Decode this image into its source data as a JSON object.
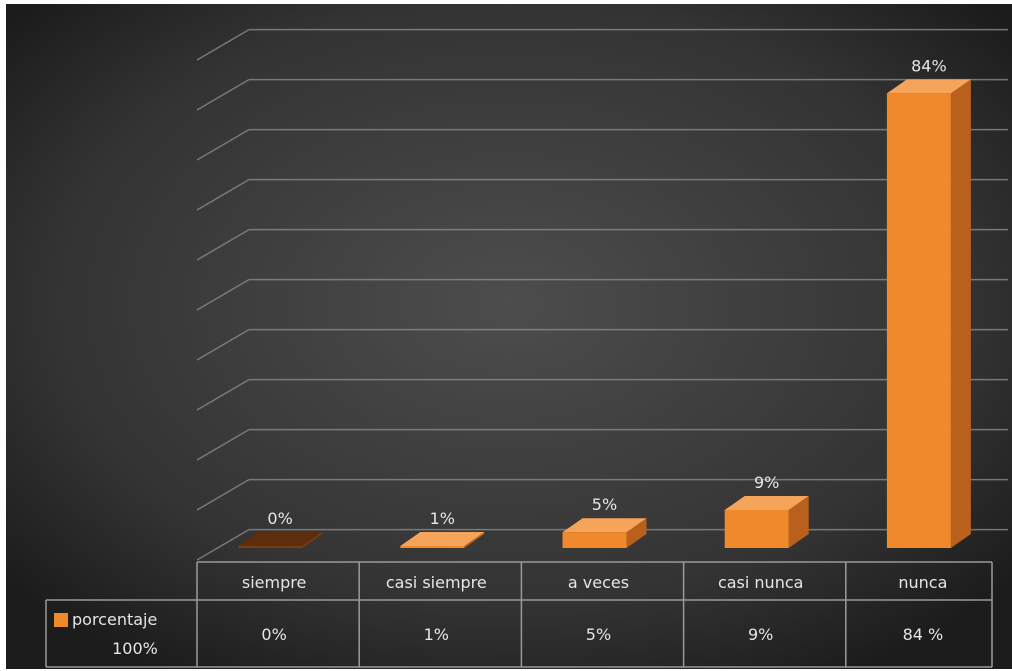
{
  "chart_data": {
    "type": "bar",
    "categories": [
      "siempre",
      "casi siempre",
      "a veces",
      "casi nunca",
      "nunca"
    ],
    "series": [
      {
        "name": "porcentaje 100%",
        "values": [
          0,
          1,
          5,
          9,
          84
        ],
        "labels": [
          "0%",
          "1%",
          "5%",
          "9%",
          "84%"
        ],
        "table_labels": [
          "0%",
          "1%",
          "5%",
          "9%",
          "84 %"
        ]
      }
    ],
    "ylim": [
      0,
      90
    ],
    "grid": true,
    "three_d": true,
    "data_table": true,
    "legend_in_table": true
  },
  "colors": {
    "background_outer": "#1f1f1f",
    "background_inner": "#4a4a4a",
    "bar_front": "#f0892c",
    "bar_top": "#f6a45a",
    "bar_side": "#b9611c",
    "zero_bar": "#7a3d10",
    "grid": "#8a8a8a",
    "text": "#e6e6e6",
    "table_line": "#9a9a9a",
    "legend_swatch": "#f0892c"
  }
}
